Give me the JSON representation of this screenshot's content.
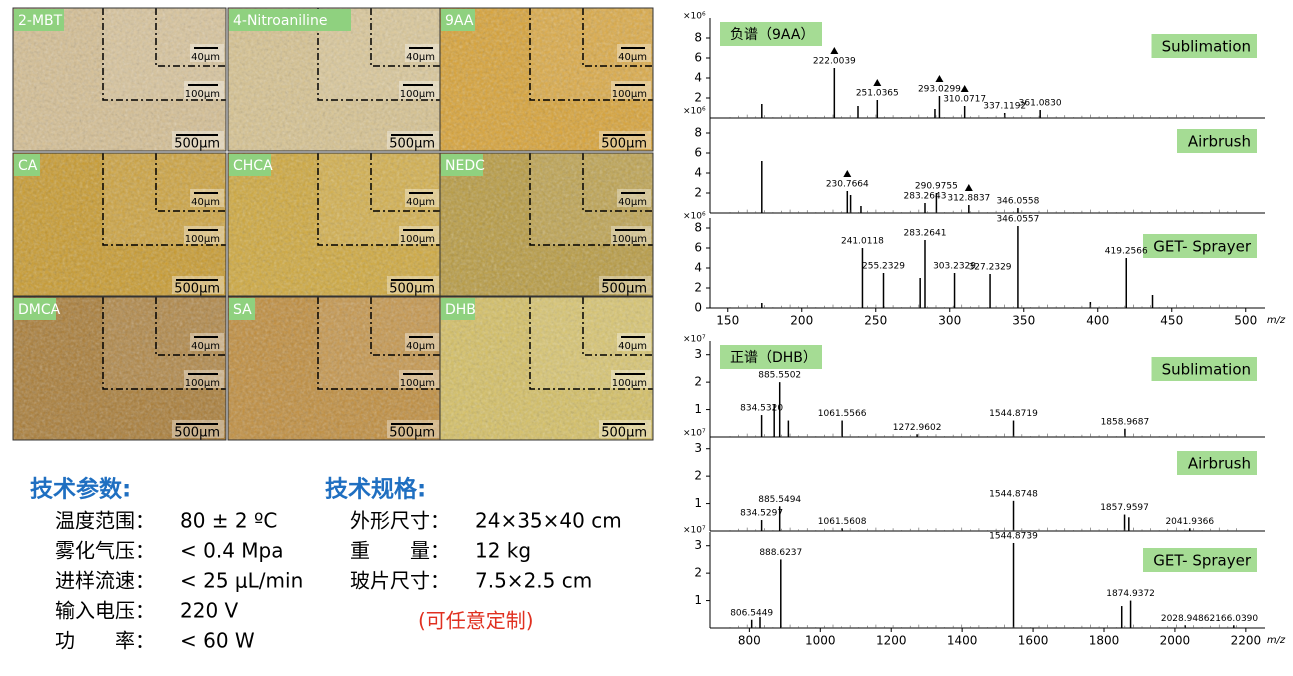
{
  "micrographs": [
    {
      "label": "2-MBT",
      "scale_bars": [
        "40μm",
        "100μm",
        "500μm"
      ],
      "color": "#d6bf92"
    },
    {
      "label": "4-Nitroaniline",
      "scale_bars": [
        "40μm",
        "100μm",
        "500μm"
      ],
      "color": "#d8c38f"
    },
    {
      "label": "9AA",
      "scale_bars": [
        "40μm",
        "100μm",
        "500μm"
      ],
      "color": "#d9a233"
    },
    {
      "label": "CA",
      "scale_bars": [
        "40μm",
        "100μm",
        "500μm"
      ],
      "color": "#c99a2b"
    },
    {
      "label": "CHCA",
      "scale_bars": [
        "40μm",
        "100μm",
        "500μm"
      ],
      "color": "#d0a83a"
    },
    {
      "label": "NEDC",
      "scale_bars": [
        "40μm",
        "100μm",
        "500μm"
      ],
      "color": "#b89a3e"
    },
    {
      "label": "DMCA",
      "scale_bars": [
        "40μm",
        "100μm",
        "500μm"
      ],
      "color": "#a97b34"
    },
    {
      "label": "SA",
      "scale_bars": [
        "40μm",
        "100μm",
        "500μm"
      ],
      "color": "#c08c3a"
    },
    {
      "label": "DHB",
      "scale_bars": [
        "40μm",
        "100μm",
        "500μm"
      ],
      "color": "#d6c062"
    }
  ],
  "tech_params": {
    "heading": "技术参数:",
    "rows": [
      [
        "温度范围：",
        "80 ± 2 ºC"
      ],
      [
        "雾化气压：",
        "< 0.4 Mpa"
      ],
      [
        "进样流速：",
        "< 25 μL/min"
      ],
      [
        "输入电压：",
        "220 V"
      ],
      [
        "功　　率：",
        "< 60 W"
      ]
    ]
  },
  "tech_specs": {
    "heading": "技术规格:",
    "rows": [
      [
        "外形尺寸：",
        "24×35×40 cm"
      ],
      [
        "重　　量：",
        "12 kg"
      ],
      [
        "玻片尺寸：",
        "7.5×2.5 cm"
      ]
    ],
    "note": "(可任意定制)"
  },
  "chart_data": [
    {
      "type": "spectrum",
      "group_title": "负谱（9AA）",
      "title": "Sublimation",
      "y_scale_label": "×10⁶",
      "color": "#000000",
      "xlim": [
        138,
        513
      ],
      "ylim": [
        0,
        10
      ],
      "yticks": [
        2,
        4,
        6,
        8
      ],
      "x": [
        173,
        222.0039,
        238,
        251.0365,
        290,
        293.0299,
        310.0717,
        337.1192,
        361.083
      ],
      "values": [
        1.4,
        5.0,
        1.2,
        1.8,
        0.9,
        2.2,
        1.2,
        0.5,
        0.8
      ],
      "peak_labels": [
        null,
        "222.0039",
        null,
        "251.0365",
        null,
        "293.0299",
        "310.0717",
        "337.1192",
        "361.0830"
      ],
      "triangle": [
        false,
        true,
        false,
        true,
        false,
        true,
        true,
        false,
        false
      ]
    },
    {
      "type": "spectrum",
      "title": "Airbrush",
      "y_scale_label": "×10⁶",
      "color": "#000000",
      "xlim": [
        138,
        513
      ],
      "ylim": [
        0,
        10
      ],
      "yticks": [
        2,
        4,
        6,
        8
      ],
      "x": [
        173,
        230.7664,
        233,
        240,
        283.2643,
        290.9755,
        312.8837,
        346.0558
      ],
      "values": [
        5.2,
        2.2,
        1.8,
        0.7,
        1.0,
        2.0,
        0.8,
        0.5
      ],
      "peak_labels": [
        null,
        "230.7664",
        null,
        null,
        "283.2643",
        "290.9755",
        "312.8837",
        "346.0558"
      ],
      "triangle": [
        false,
        true,
        false,
        false,
        false,
        false,
        true,
        false
      ]
    },
    {
      "type": "spectrum",
      "title": "GET- Sprayer",
      "y_scale_label": "×10⁶",
      "color": "#000000",
      "x_label": "m/z",
      "xlim": [
        138,
        513
      ],
      "ylim": [
        0,
        9
      ],
      "yticks": [
        0,
        2,
        4,
        6,
        8
      ],
      "xticks": [
        150,
        200,
        250,
        300,
        350,
        400,
        450,
        500
      ],
      "x": [
        173,
        241.0118,
        255.2329,
        280,
        283.2641,
        303.2329,
        327.2329,
        346.0557,
        395,
        419.2566,
        437
      ],
      "values": [
        0.5,
        6.0,
        3.5,
        3.0,
        6.8,
        3.5,
        3.4,
        8.2,
        0.6,
        5.0,
        1.3
      ],
      "peak_labels": [
        null,
        "241.0118",
        "255.2329",
        null,
        "283.2641",
        "303.2329",
        "327.2329",
        "346.0557",
        null,
        "419.2566",
        null
      ]
    },
    {
      "type": "spectrum",
      "group_title": "正谱（DHB）",
      "title": "Sublimation",
      "y_scale_label": "×10⁷",
      "color": "#000000",
      "xlim": [
        689,
        2254
      ],
      "ylim": [
        0,
        3.5
      ],
      "yticks": [
        1,
        2,
        3
      ],
      "x": [
        834.532,
        870,
        885.5502,
        910,
        1061.5566,
        1272.9602,
        1544.8719,
        1858.9687
      ],
      "values": [
        0.8,
        1.2,
        2.0,
        0.6,
        0.6,
        0.1,
        0.6,
        0.3
      ],
      "peak_labels": [
        "834.5320",
        null,
        "885.5502",
        null,
        "1061.5566",
        "1272.9602",
        "1544.8719",
        "1858.9687"
      ]
    },
    {
      "type": "spectrum",
      "title": "Airbrush",
      "y_scale_label": "×10⁷",
      "color": "#000000",
      "xlim": [
        689,
        2254
      ],
      "ylim": [
        0,
        3.5
      ],
      "yticks": [
        1,
        2,
        3
      ],
      "x": [
        834.5297,
        885.5494,
        1061.5608,
        1544.8748,
        1857.9597,
        1870,
        2041.9366
      ],
      "values": [
        0.4,
        0.9,
        0.1,
        1.1,
        0.6,
        0.5,
        0.1
      ],
      "peak_labels": [
        "834.5297",
        "885.5494",
        "1061.5608",
        "1544.8748",
        "1857.9597",
        null,
        "2041.9366"
      ]
    },
    {
      "type": "spectrum",
      "title": "GET- Sprayer",
      "y_scale_label": "×10⁷",
      "color": "#000000",
      "x_label": "m/z",
      "xlim": [
        689,
        2254
      ],
      "ylim": [
        0,
        3.5
      ],
      "yticks": [
        1,
        2,
        3
      ],
      "xticks": [
        800,
        1000,
        1200,
        1400,
        1600,
        1800,
        2000,
        2200
      ],
      "x": [
        806.5449,
        830,
        888.6237,
        1544.8739,
        1850,
        1874.9372,
        2028.9486,
        2166.039
      ],
      "values": [
        0.3,
        0.4,
        2.5,
        3.1,
        0.8,
        1.0,
        0.1,
        0.1
      ],
      "peak_labels": [
        "806.5449",
        null,
        "888.6237",
        "1544.8739",
        null,
        "1874.9372",
        "2028.9486",
        "2166.0390"
      ]
    }
  ]
}
